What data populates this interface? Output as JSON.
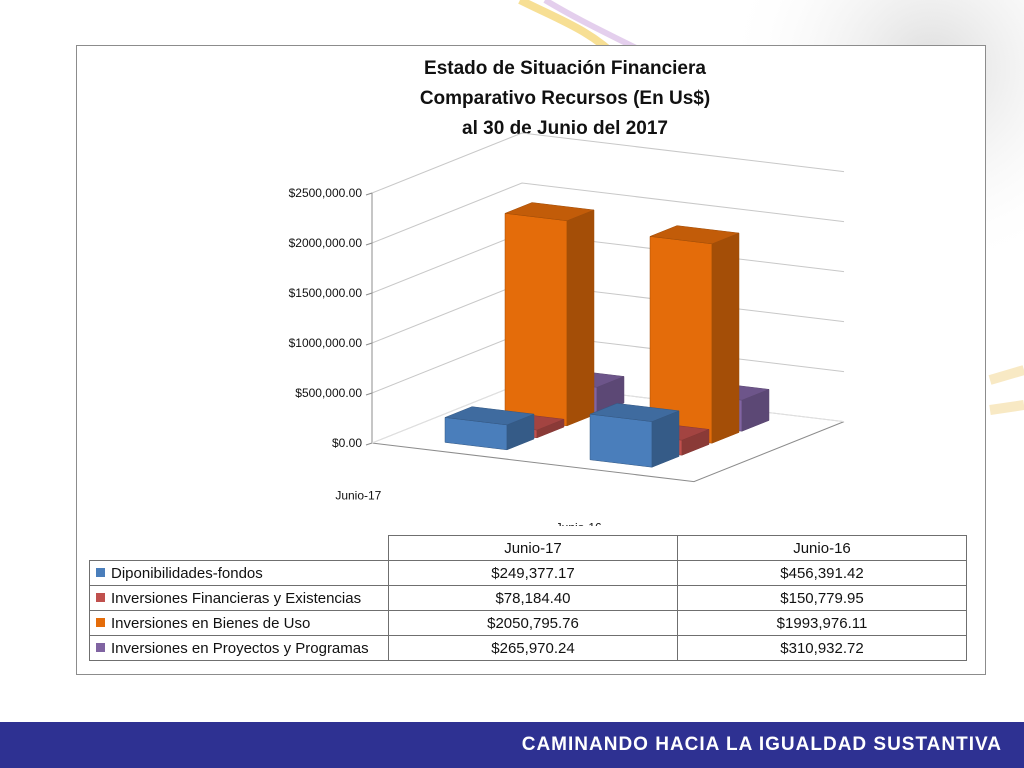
{
  "chart_data": {
    "type": "bar",
    "title_lines": [
      "Estado de Situación Financiera",
      "Comparativo Recursos (En Us$)",
      "al 30 de Junio del 2017"
    ],
    "categories": [
      "Junio-17",
      "Junio-16"
    ],
    "series": [
      {
        "name": "Diponibilidades-fondos",
        "values": [
          249377.17,
          456391.42
        ],
        "labels": [
          "$249,377.17",
          "$456,391.42"
        ],
        "color": "#4a7ebb"
      },
      {
        "name": "Inversiones Financieras  y  Existencias",
        "values": [
          78184.4,
          150779.95
        ],
        "labels": [
          "$78,184.40",
          "$150,779.95"
        ],
        "color": "#c0504d"
      },
      {
        "name": "Inversiones en Bienes de Uso",
        "values": [
          2050795.76,
          1993976.11
        ],
        "labels": [
          "$2050,795.76",
          "$1993,976.11"
        ],
        "color": "#e46c0a"
      },
      {
        "name": "Inversiones en Proyectos y Programas",
        "values": [
          265970.24,
          310932.72
        ],
        "labels": [
          "$265,970.24",
          "$310,932.72"
        ],
        "color": "#8064a2"
      }
    ],
    "y_ticks": [
      "$0.00",
      "$500,000.00",
      "$1000,000.00",
      "$1500,000.00",
      "$2000,000.00",
      "$2500,000.00"
    ],
    "ylim": [
      0,
      2500000
    ],
    "grid": true,
    "legend": "data-table"
  },
  "footer": {
    "slogan": "CAMINANDO HACIA LA IGUALDAD SUSTANTIVA"
  }
}
